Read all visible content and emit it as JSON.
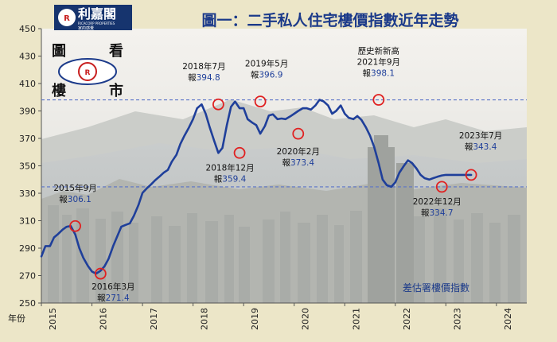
{
  "header": {
    "logo_main": "利嘉閣",
    "logo_en": "RICACORP PROPERTIES",
    "logo_sub": "家的感覺",
    "title": "圖一：二手私人住宅樓價指數近年走勢"
  },
  "badge": {
    "chars": [
      "圖",
      "看",
      "樓",
      "市"
    ],
    "icon": "eye-icon"
  },
  "chart_data": {
    "type": "line",
    "title": "圖一：二手私人住宅樓價指數近年走勢",
    "series_name": "差估署樓價指數",
    "xlabel": "年份",
    "ylabel": "",
    "ylim": [
      250,
      450
    ],
    "yticks": [
      250,
      270,
      290,
      310,
      330,
      350,
      370,
      390,
      410,
      430,
      450
    ],
    "xlim": [
      2015.0,
      2024.6
    ],
    "xticks": [
      "2015",
      "2016",
      "2017",
      "2018",
      "2019",
      "2020",
      "2021",
      "2022",
      "2023",
      "2024"
    ],
    "grid": false,
    "colors": {
      "line": "#1f3f9a",
      "marker": "#e02020",
      "reference": "#5a74c8",
      "value": "#1f3f9a"
    },
    "reference_lines": [
      398.1,
      334.7
    ],
    "series": [
      {
        "name": "差估署樓價指數",
        "x": [
          2015.0,
          2015.08,
          2015.17,
          2015.25,
          2015.33,
          2015.42,
          2015.5,
          2015.58,
          2015.67,
          2015.75,
          2015.83,
          2015.92,
          2016.0,
          2016.08,
          2016.17,
          2016.25,
          2016.33,
          2016.42,
          2016.5,
          2016.58,
          2016.67,
          2016.75,
          2016.83,
          2016.92,
          2017.0,
          2017.08,
          2017.17,
          2017.25,
          2017.33,
          2017.42,
          2017.5,
          2017.58,
          2017.67,
          2017.75,
          2017.83,
          2017.92,
          2018.0,
          2018.08,
          2018.17,
          2018.25,
          2018.33,
          2018.42,
          2018.5,
          2018.58,
          2018.67,
          2018.75,
          2018.83,
          2018.92,
          2019.0,
          2019.08,
          2019.17,
          2019.25,
          2019.33,
          2019.42,
          2019.5,
          2019.58,
          2019.67,
          2019.75,
          2019.83,
          2019.92,
          2020.0,
          2020.08,
          2020.17,
          2020.25,
          2020.33,
          2020.42,
          2020.5,
          2020.58,
          2020.67,
          2020.75,
          2020.83,
          2020.92,
          2021.0,
          2021.08,
          2021.17,
          2021.25,
          2021.33,
          2021.42,
          2021.5,
          2021.58,
          2021.67,
          2021.75,
          2021.83,
          2021.92,
          2022.0,
          2022.08,
          2022.17,
          2022.25,
          2022.33,
          2022.42,
          2022.5,
          2022.58,
          2022.67,
          2022.75,
          2022.83,
          2022.92,
          2023.0,
          2023.08,
          2023.17,
          2023.25,
          2023.33,
          2023.42,
          2023.5
        ],
        "values": [
          284.0,
          291.5,
          291.5,
          297.8,
          300.3,
          303.5,
          305.6,
          306.1,
          300.0,
          290.0,
          283.0,
          277.0,
          273.0,
          271.4,
          273.5,
          276.8,
          282.3,
          291.5,
          298.5,
          305.6,
          307.0,
          308.1,
          313.6,
          321.4,
          330.3,
          333.4,
          336.5,
          339.5,
          342.0,
          345.0,
          347.0,
          353.0,
          358.0,
          366.0,
          372.0,
          378.0,
          384.0,
          392.0,
          394.8,
          388.0,
          378.0,
          368.0,
          359.4,
          363.0,
          380.0,
          393.0,
          396.9,
          392.0,
          392.0,
          384.0,
          381.5,
          379.6,
          373.4,
          379.0,
          386.7,
          387.5,
          384.0,
          384.5,
          384.0,
          386.0,
          388.0,
          390.0,
          392.0,
          392.0,
          391.0,
          394.0,
          398.1,
          397.0,
          394.0,
          388.0,
          390.0,
          394.0,
          388.0,
          385.0,
          384.0,
          386.3,
          383.5,
          378.0,
          372.0,
          364.0,
          352.0,
          340.0,
          336.0,
          334.7,
          338.0,
          345.0,
          350.0,
          354.0,
          352.0,
          348.0,
          343.4,
          341.0,
          340.0,
          341.0,
          342.0,
          343.0,
          343.4,
          343.4,
          343.4,
          343.4,
          343.4,
          343.4,
          343.4
        ]
      }
    ],
    "annotations": [
      {
        "label": "2015年9月",
        "value_prefix": "報",
        "value": 306.1,
        "x": 2015.67,
        "y": 306.1
      },
      {
        "label": "2016年3月",
        "value_prefix": "報",
        "value": 271.4,
        "x": 2016.17,
        "y": 271.4
      },
      {
        "label": "2018年7月",
        "value_prefix": "報",
        "value": 394.8,
        "x": 2018.5,
        "y": 394.8
      },
      {
        "label": "2018年12月",
        "value_prefix": "報",
        "value": 359.4,
        "x": 2018.92,
        "y": 359.4
      },
      {
        "label": "2019年5月",
        "value_prefix": "報",
        "value": 396.9,
        "x": 2019.33,
        "y": 396.9
      },
      {
        "label": "2020年2月",
        "value_prefix": "報",
        "value": 373.4,
        "x": 2020.08,
        "y": 373.4
      },
      {
        "label": "歷史新新高",
        "label2": "2021年9月",
        "value_prefix": "報",
        "value": 398.1,
        "x": 2021.67,
        "y": 398.1
      },
      {
        "label": "2022年12月",
        "value_prefix": "報",
        "value": 334.7,
        "x": 2022.92,
        "y": 334.7
      },
      {
        "label": "2023年7月",
        "value_prefix": "報",
        "value": 343.4,
        "x": 2023.5,
        "y": 343.4
      }
    ]
  }
}
